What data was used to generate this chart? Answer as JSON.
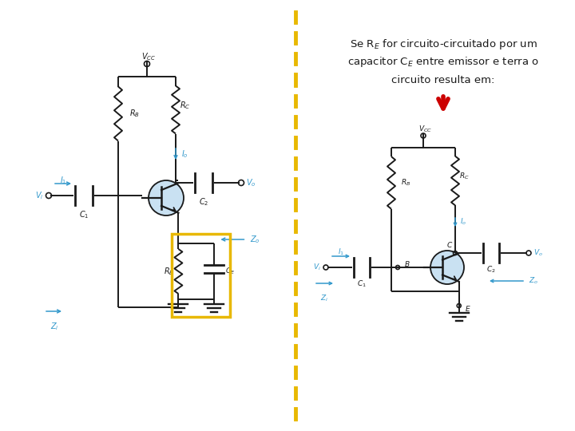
{
  "bg": "#ffffff",
  "lc": "#1a1a1a",
  "cc": "#3399cc",
  "gold": "#e8b800",
  "red": "#cc0000",
  "transistor_fill": "#b8d8ee",
  "text_color": "#1a1a1a",
  "figw": 7.2,
  "figh": 5.4,
  "dpi": 100
}
